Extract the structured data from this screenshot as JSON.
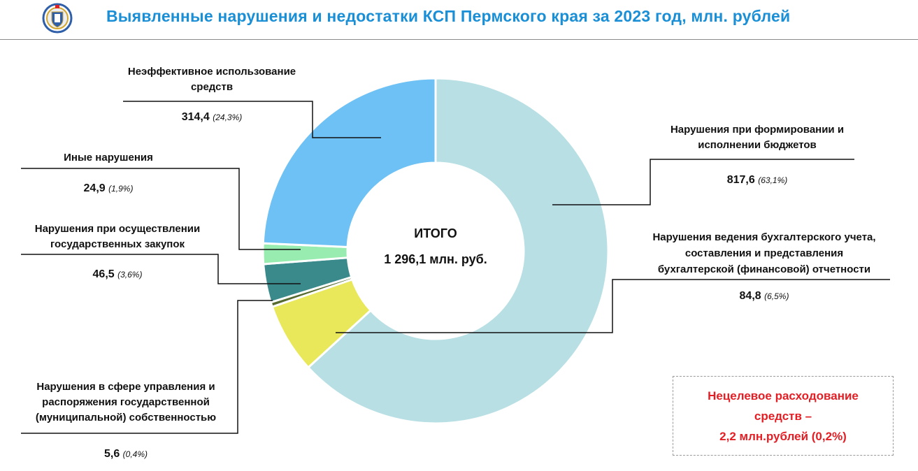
{
  "header": {
    "title": "Выявленные нарушения и недостатки КСП Пермского края за 2023 год, млн. рублей",
    "logo_icon": "emblem-shield-icon"
  },
  "colors": {
    "title": "#1a8fd6",
    "note": "#e31e24",
    "budget": "#b7dfe4",
    "accounting": "#e8e85a",
    "property": "#556b2f",
    "procurement": "#3a8a8c",
    "other": "#98ecb0",
    "inefficient": "#6ec1f4"
  },
  "chart_data": {
    "type": "pie",
    "donut": true,
    "center_label": [
      "ИТОГО",
      "1 296,1 млн. руб."
    ],
    "total": 1296.1,
    "slices": [
      {
        "name": "Нарушения при формировании и исполнении бюджетов",
        "lines": [
          "Нарушения при формировании и",
          "исполнении бюджетов"
        ],
        "value": 817.6,
        "value_label": "817,6",
        "pct_label": "(63,1%)",
        "color": "#b7dfe4"
      },
      {
        "name": "Нарушения ведения бухгалтерского учета, составления и представления бухгалтерской (финансовой) отчетности",
        "lines": [
          "Нарушения ведения бухгалтерского учета,",
          "составления и представления",
          "бухгалтерской (финансовой) отчетности"
        ],
        "value": 84.8,
        "value_label": "84,8",
        "pct_label": "(6,5%)",
        "color": "#e8e85a"
      },
      {
        "name": "Нарушения в сфере управления и распоряжения государственной (муниципальной) собственностью",
        "lines": [
          "Нарушения в сфере управления и",
          "распоряжения государственной",
          "(муниципальной) собственностью"
        ],
        "value": 5.6,
        "value_label": "5,6",
        "pct_label": "(0,4%)",
        "color": "#556b2f"
      },
      {
        "name": "Нарушения при осуществлении государственных закупок",
        "lines": [
          "Нарушения при осуществлении",
          "государственных закупок"
        ],
        "value": 46.5,
        "value_label": "46,5",
        "pct_label": "(3,6%)",
        "color": "#3a8a8c"
      },
      {
        "name": "Иные нарушения",
        "lines": [
          "Иные нарушения"
        ],
        "value": 24.9,
        "value_label": "24,9",
        "pct_label": "(1,9%)",
        "color": "#98ecb0"
      },
      {
        "name": "Неэффективное использование средств",
        "lines": [
          "Неэффективное использование",
          "средств"
        ],
        "value": 314.4,
        "value_label": "314,4",
        "pct_label": "(24,3%)",
        "color": "#6ec1f4"
      }
    ]
  },
  "note": {
    "lines": [
      "Нецелевое расходование",
      "средств –",
      "2,2 млн.рублей (0,2%)"
    ]
  }
}
